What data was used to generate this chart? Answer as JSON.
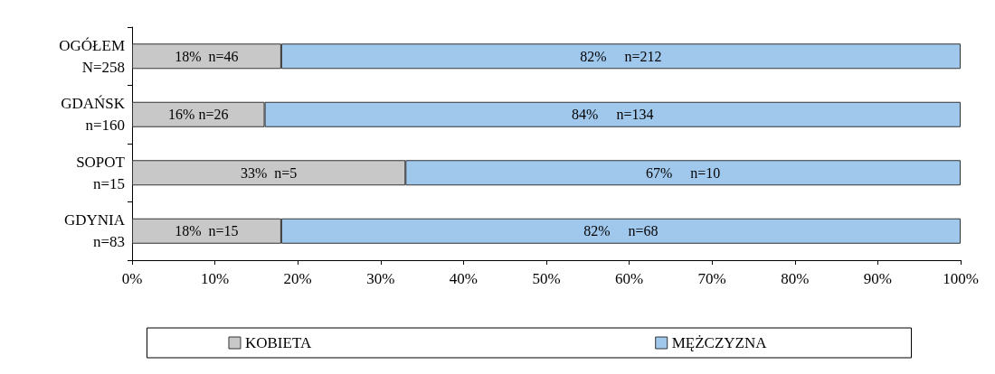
{
  "chart_data": {
    "type": "bar",
    "orientation": "horizontal",
    "stacked": true,
    "categories": [
      "OGÓŁEM\nN=258",
      "GDAŃSK\nn=160",
      "SOPOT\nn=15",
      "GDYNIA\nn=83"
    ],
    "series": [
      {
        "name": "KOBIETA",
        "color": "#c8c8c8",
        "values": [
          18,
          16,
          33,
          18
        ],
        "value_labels": [
          "18%  n=46",
          "16% n=26",
          "33%  n=5",
          "18%  n=15"
        ]
      },
      {
        "name": "MĘŻCZYZNA",
        "color": "#a0c8ec",
        "values": [
          82,
          84,
          67,
          82
        ],
        "value_labels": [
          "82%     n=212",
          "84%     n=134",
          "67%     n=10",
          "82%     n=68"
        ]
      }
    ],
    "xlim": [
      0,
      100
    ],
    "xticks": [
      {
        "value": 0,
        "label": "0%"
      },
      {
        "value": 10,
        "label": "10%"
      },
      {
        "value": 20,
        "label": "20%"
      },
      {
        "value": 30,
        "label": "30%"
      },
      {
        "value": 40,
        "label": "40%"
      },
      {
        "value": 50,
        "label": "50%"
      },
      {
        "value": 60,
        "label": "60%"
      },
      {
        "value": 70,
        "label": "70%"
      },
      {
        "value": 80,
        "label": "80%"
      },
      {
        "value": 90,
        "label": "90%"
      },
      {
        "value": 100,
        "label": "100%"
      }
    ],
    "grid": false,
    "legend": "bottom"
  }
}
